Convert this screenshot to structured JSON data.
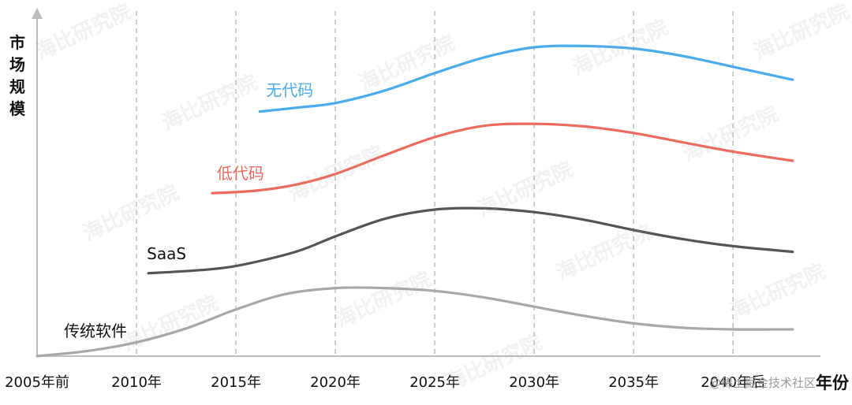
{
  "chart_data": {
    "type": "line",
    "ylabel": "市场规模",
    "xlabel": "年份",
    "categories": [
      "2005年前",
      "2010年",
      "2015年",
      "2020年",
      "2025年",
      "2030年",
      "2035年",
      "2040年后"
    ],
    "x_values": [
      2005,
      2010,
      2015,
      2020,
      2025,
      2030,
      2035,
      2040
    ],
    "xlim": [
      2005,
      2044
    ],
    "ylim": [
      0,
      100
    ],
    "grid": "vertical dashed",
    "series": [
      {
        "name": "无代码",
        "color": "#4aabed",
        "points": [
          [
            2016.2,
            77.6
          ],
          [
            2018,
            78.8
          ],
          [
            2020,
            80.3
          ],
          [
            2022.5,
            84.3
          ],
          [
            2025,
            89.8
          ],
          [
            2027.5,
            94.8
          ],
          [
            2030,
            98.0
          ],
          [
            2032.5,
            98.4
          ],
          [
            2035,
            97.6
          ],
          [
            2037.5,
            95.2
          ],
          [
            2040,
            91.8
          ],
          [
            2043,
            87.7
          ]
        ]
      },
      {
        "name": "低代码",
        "color": "#ee6a5c",
        "points": [
          [
            2013.8,
            51.7
          ],
          [
            2016,
            52.5
          ],
          [
            2018,
            54.4
          ],
          [
            2020,
            57.8
          ],
          [
            2022.5,
            63.8
          ],
          [
            2025,
            69.5
          ],
          [
            2027.5,
            73.1
          ],
          [
            2030,
            73.7
          ],
          [
            2032.5,
            72.9
          ],
          [
            2035,
            70.8
          ],
          [
            2037.5,
            67.8
          ],
          [
            2040,
            64.9
          ],
          [
            2043,
            62.0
          ]
        ]
      },
      {
        "name": "SaaS",
        "color": "#555555",
        "points": [
          [
            2010.6,
            26.3
          ],
          [
            2013,
            27.2
          ],
          [
            2015,
            28.6
          ],
          [
            2018,
            33.1
          ],
          [
            2020,
            38.0
          ],
          [
            2022.5,
            43.6
          ],
          [
            2025,
            46.5
          ],
          [
            2027.5,
            46.9
          ],
          [
            2030,
            45.7
          ],
          [
            2032.5,
            43.3
          ],
          [
            2035,
            40.0
          ],
          [
            2037.5,
            37.1
          ],
          [
            2040,
            34.9
          ],
          [
            2043,
            33.1
          ]
        ]
      },
      {
        "name": "传统软件",
        "color": "#a8a8a8",
        "points": [
          [
            2005,
            0.0
          ],
          [
            2007.5,
            1.6
          ],
          [
            2010,
            4.4
          ],
          [
            2012.5,
            8.8
          ],
          [
            2015,
            14.8
          ],
          [
            2017.5,
            19.7
          ],
          [
            2020,
            21.6
          ],
          [
            2022.5,
            21.6
          ],
          [
            2025,
            20.7
          ],
          [
            2027.5,
            18.6
          ],
          [
            2030,
            15.7
          ],
          [
            2032.5,
            12.8
          ],
          [
            2035,
            10.4
          ],
          [
            2037.5,
            9.0
          ],
          [
            2040,
            8.5
          ],
          [
            2043,
            8.5
          ]
        ]
      }
    ]
  },
  "watermark": "海比研究院",
  "credit": "@稀土掘金技术社区"
}
